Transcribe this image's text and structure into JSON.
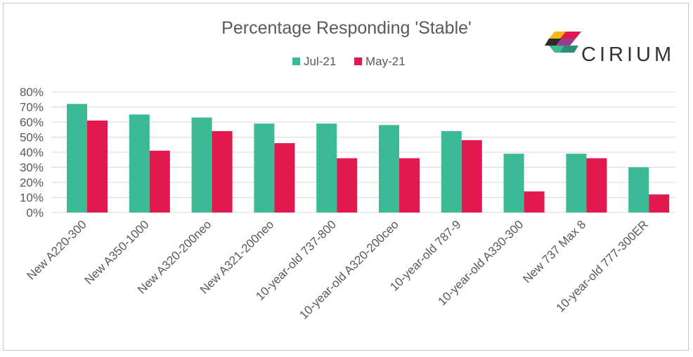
{
  "chart_data": {
    "type": "bar",
    "title": "Percentage Responding 'Stable'",
    "categories": [
      "New A220-300",
      "New A350-1000",
      "New A320-200neo",
      "New A321-200neo",
      "10-year-old 737-800",
      "10-year-old A320-200ceo",
      "10-year-old 787-9",
      "10-year-old A330-300",
      "New 737 Max 8",
      "10-year-old 777-300ER"
    ],
    "series": [
      {
        "name": "Jul-21",
        "color": "#3cb995",
        "values": [
          72,
          65,
          63,
          59,
          59,
          58,
          54,
          39,
          39,
          30
        ]
      },
      {
        "name": "May-21",
        "color": "#e2194f",
        "values": [
          61,
          41,
          54,
          46,
          36,
          36,
          48,
          14,
          36,
          12
        ]
      }
    ],
    "y_ticks": [
      "0%",
      "10%",
      "20%",
      "30%",
      "40%",
      "50%",
      "60%",
      "70%",
      "80%"
    ],
    "ylim": [
      0,
      80
    ],
    "grid": true,
    "legend_position": "top-center"
  },
  "brand": {
    "name": "CIRIUM",
    "logo": "cirium-logo-icon"
  }
}
